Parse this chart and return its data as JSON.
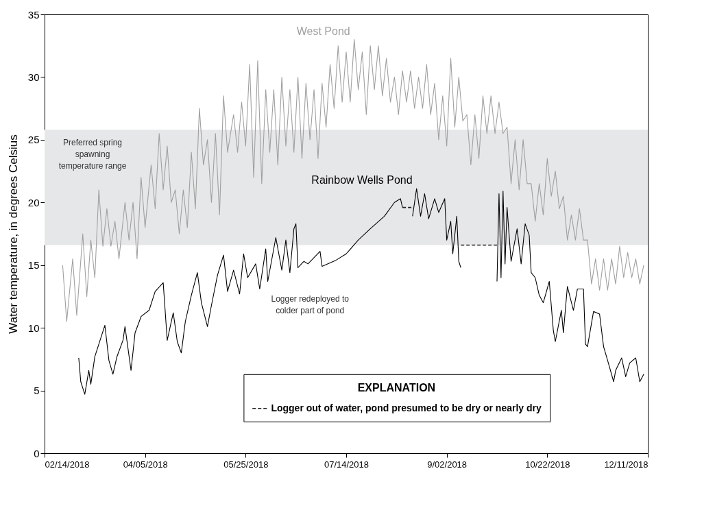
{
  "chart_data": {
    "type": "line",
    "ylabel": "Water temperature, in degrees Celsius",
    "legend_title": "EXPLANATION",
    "legend": "bottom",
    "grid": false,
    "xlim": [
      "2018-02-14",
      "2018-12-11"
    ],
    "xticks": [
      {
        "value": "2018-02-14",
        "label": "02/14/2018"
      },
      {
        "value": "2018-04-05",
        "label": "04/05/2018"
      },
      {
        "value": "2018-05-25",
        "label": "05/25/2018"
      },
      {
        "value": "2018-07-14",
        "label": "07/14/2018"
      },
      {
        "value": "2018-09-02",
        "label": "9/02/2018"
      },
      {
        "value": "2018-10-22",
        "label": "10/22/2018"
      },
      {
        "value": "2018-12-11",
        "label": "12/11/2018"
      }
    ],
    "ylim": [
      0,
      35
    ],
    "yticks": [
      0,
      5,
      10,
      15,
      20,
      25,
      30,
      35
    ],
    "bands": [
      {
        "axis": "y",
        "from": 16.6,
        "to": 25.8,
        "label": "Preferred spring spawning temperature range",
        "color": "#e6e7e8"
      }
    ],
    "annotations": [
      "Logger redeployed to colder part of pond"
    ],
    "series": [
      {
        "name": "West Pond",
        "color": "#a0a0a0",
        "x": [
          "2018-02-23",
          "2018-02-25",
          "2018-02-28",
          "2018-03-02",
          "2018-03-05",
          "2018-03-07",
          "2018-03-09",
          "2018-03-11",
          "2018-03-13",
          "2018-03-15",
          "2018-03-17",
          "2018-03-19",
          "2018-03-21",
          "2018-03-23",
          "2018-03-26",
          "2018-03-28",
          "2018-03-30",
          "2018-04-01",
          "2018-04-03",
          "2018-04-05",
          "2018-04-08",
          "2018-04-10",
          "2018-04-12",
          "2018-04-14",
          "2018-04-16",
          "2018-04-18",
          "2018-04-20",
          "2018-04-22",
          "2018-04-24",
          "2018-04-26",
          "2018-04-28",
          "2018-04-30",
          "2018-05-02",
          "2018-05-04",
          "2018-05-06",
          "2018-05-08",
          "2018-05-10",
          "2018-05-12",
          "2018-05-14",
          "2018-05-16",
          "2018-05-19",
          "2018-05-21",
          "2018-05-23",
          "2018-05-25",
          "2018-05-27",
          "2018-05-29",
          "2018-05-31",
          "2018-06-02",
          "2018-06-04",
          "2018-06-06",
          "2018-06-08",
          "2018-06-10",
          "2018-06-12",
          "2018-06-14",
          "2018-06-16",
          "2018-06-18",
          "2018-06-20",
          "2018-06-22",
          "2018-06-24",
          "2018-06-26",
          "2018-06-28",
          "2018-06-30",
          "2018-07-02",
          "2018-07-04",
          "2018-07-06",
          "2018-07-08",
          "2018-07-10",
          "2018-07-12",
          "2018-07-14",
          "2018-07-16",
          "2018-07-18",
          "2018-07-20",
          "2018-07-22",
          "2018-07-24",
          "2018-07-26",
          "2018-07-28",
          "2018-07-30",
          "2018-08-01",
          "2018-08-03",
          "2018-08-05",
          "2018-08-07",
          "2018-08-09",
          "2018-08-11",
          "2018-08-13",
          "2018-08-15",
          "2018-08-17",
          "2018-08-19",
          "2018-08-21",
          "2018-08-23",
          "2018-08-25",
          "2018-08-27",
          "2018-08-29",
          "2018-08-31",
          "2018-09-02",
          "2018-09-04",
          "2018-09-06",
          "2018-09-08",
          "2018-09-10",
          "2018-09-12",
          "2018-09-14",
          "2018-09-16",
          "2018-09-18",
          "2018-09-20",
          "2018-09-22",
          "2018-09-24",
          "2018-09-26",
          "2018-09-28",
          "2018-09-30",
          "2018-10-02",
          "2018-10-04",
          "2018-10-06",
          "2018-10-08",
          "2018-10-10",
          "2018-10-12",
          "2018-10-14",
          "2018-10-16",
          "2018-10-18",
          "2018-10-20",
          "2018-10-22",
          "2018-10-24",
          "2018-10-26",
          "2018-10-28",
          "2018-10-30",
          "2018-11-01",
          "2018-11-03",
          "2018-11-05",
          "2018-11-07",
          "2018-11-09",
          "2018-11-11",
          "2018-11-13",
          "2018-11-15",
          "2018-11-17",
          "2018-11-19",
          "2018-11-21",
          "2018-11-23",
          "2018-11-25",
          "2018-11-27",
          "2018-11-29",
          "2018-12-01",
          "2018-12-03",
          "2018-12-05",
          "2018-12-07",
          "2018-12-09"
        ],
        "values": [
          15,
          10.5,
          15.5,
          11,
          17.5,
          12.5,
          17,
          14,
          21,
          16.5,
          19.5,
          16.5,
          18.5,
          15.5,
          20,
          17,
          20,
          15.5,
          22,
          18,
          23,
          19.5,
          25.5,
          21,
          24.5,
          20,
          21,
          17.5,
          21,
          18,
          24,
          19.5,
          27.5,
          23,
          25,
          20,
          25.5,
          19,
          28.5,
          24,
          27,
          24,
          28,
          24.5,
          31,
          22,
          31.3,
          21.5,
          29,
          24,
          29,
          23,
          30,
          24.5,
          29,
          24,
          30,
          23.5,
          29.5,
          25,
          29,
          23.5,
          29.5,
          26,
          31,
          27.5,
          32.5,
          28,
          32,
          28,
          33,
          29,
          32,
          27,
          32.5,
          29,
          32.5,
          28.5,
          31.5,
          28,
          30,
          27,
          30.5,
          28,
          30.5,
          27.5,
          30,
          27.5,
          31,
          27,
          29.5,
          25,
          28.5,
          24.5,
          31.5,
          26,
          30,
          26.5,
          27,
          23,
          27,
          23.5,
          28.5,
          25.5,
          28.5,
          25.5,
          28,
          25.5,
          26,
          21.5,
          25,
          21,
          25,
          21.5,
          21.5,
          18.5,
          21.5,
          19,
          23.5,
          20.5,
          22.5,
          19.5,
          20.5,
          17,
          19,
          17,
          19.5,
          17,
          17,
          13.5,
          15.5,
          13,
          15.5,
          13,
          15.5,
          13.5,
          16.5,
          14,
          16,
          14,
          15.5,
          13.5,
          15
        ]
      },
      {
        "name": "Rainbow Wells Pond",
        "color": "#000000",
        "x": [
          "2018-03-03",
          "2018-03-04",
          "2018-03-06",
          "2018-03-08",
          "2018-03-09",
          "2018-03-11",
          "2018-03-13",
          "2018-03-16",
          "2018-03-18",
          "2018-03-20",
          "2018-03-22",
          "2018-03-25",
          "2018-03-26",
          "2018-03-29",
          "2018-03-31",
          "2018-04-03",
          "2018-04-07",
          "2018-04-10",
          "2018-04-14",
          "2018-04-16",
          "2018-04-19",
          "2018-04-21",
          "2018-04-23",
          "2018-04-25",
          "2018-04-28",
          "2018-05-01",
          "2018-05-03",
          "2018-05-06",
          "2018-05-08",
          "2018-05-11",
          "2018-05-14",
          "2018-05-16",
          "2018-05-19",
          "2018-05-22",
          "2018-05-24",
          "2018-05-26",
          "2018-05-30",
          "2018-06-01",
          "2018-06-04",
          "2018-06-05",
          "2018-06-09",
          "2018-06-12",
          "2018-06-14",
          "2018-06-16",
          "2018-06-18",
          "2018-06-19",
          "2018-06-20",
          "2018-06-23",
          "2018-06-25",
          "2018-07-01",
          "2018-07-02",
          "2018-07-09",
          "2018-07-14",
          "2018-07-20",
          "2018-07-26",
          "2018-08-02",
          "2018-08-07",
          "2018-08-10",
          "2018-08-11",
          "2018-08-13",
          "2018-08-16",
          "2018-08-18",
          "2018-08-20",
          "2018-08-22",
          "2018-08-24",
          "2018-08-27",
          "2018-08-29",
          "2018-09-01",
          "2018-09-02",
          "2018-09-04",
          "2018-09-05",
          "2018-09-07",
          "2018-09-08",
          "2018-09-09",
          "2018-09-17",
          "2018-09-27",
          "2018-09-28",
          "2018-09-29",
          "2018-09-30",
          "2018-10-01",
          "2018-10-02",
          "2018-10-04",
          "2018-10-07",
          "2018-10-09",
          "2018-10-11",
          "2018-10-13",
          "2018-10-14",
          "2018-10-16",
          "2018-10-18",
          "2018-10-20",
          "2018-10-23",
          "2018-10-25",
          "2018-10-26",
          "2018-10-29",
          "2018-10-30",
          "2018-11-01",
          "2018-11-04",
          "2018-11-06",
          "2018-11-09",
          "2018-11-10",
          "2018-11-11",
          "2018-11-14",
          "2018-11-17",
          "2018-11-19",
          "2018-11-21",
          "2018-11-24",
          "2018-11-25",
          "2018-11-28",
          "2018-11-30",
          "2018-12-02",
          "2018-12-05",
          "2018-12-07",
          "2018-12-09"
        ],
        "values": [
          7.6,
          5.7,
          4.7,
          6.6,
          5.5,
          7.7,
          8.7,
          10.2,
          7.4,
          6.3,
          7.7,
          9,
          10.1,
          6.6,
          9.6,
          10.9,
          11.4,
          12.9,
          13.6,
          9,
          11.2,
          8.9,
          8,
          10.5,
          12.6,
          14.4,
          12,
          10.1,
          11.8,
          14.2,
          15.8,
          12.9,
          14.6,
          12.7,
          15.9,
          14,
          15.1,
          13.1,
          16.3,
          13.7,
          17.2,
          14.6,
          17,
          14.4,
          17.9,
          18.3,
          14.8,
          15.3,
          15.1,
          16.1,
          14.9,
          15.4,
          15.9,
          17,
          17.9,
          18.9,
          20,
          20.3,
          19.6,
          null,
          18.9,
          21.1,
          18.9,
          20.7,
          18.7,
          20.3,
          19.2,
          20.3,
          17,
          18.5,
          15.9,
          18.9,
          15.3,
          14.8,
          null,
          13.7,
          20.7,
          14,
          20.9,
          15.1,
          19.6,
          15.3,
          17.9,
          15.1,
          18.3,
          17.4,
          14.4,
          14,
          12.6,
          12,
          13.7,
          9.8,
          8.9,
          11.4,
          9.6,
          13.3,
          11.4,
          13.1,
          13.1,
          8.7,
          8.5,
          11.3,
          11.1,
          8.5,
          7.4,
          5.7,
          6.6,
          7.6,
          6.1,
          7.2,
          7.6,
          5.7,
          6.3
        ]
      },
      {
        "name": "Logger out of water, pond presumed to be dry or nearly dry",
        "color": "#222222",
        "line_style": "dashed",
        "x": [
          "2018-08-11",
          "2018-08-16",
          "2018-08-30",
          "2018-09-09",
          "2018-09-27"
        ],
        "values": [
          19.6,
          19.6,
          null,
          16.6,
          16.6
        ]
      }
    ]
  }
}
